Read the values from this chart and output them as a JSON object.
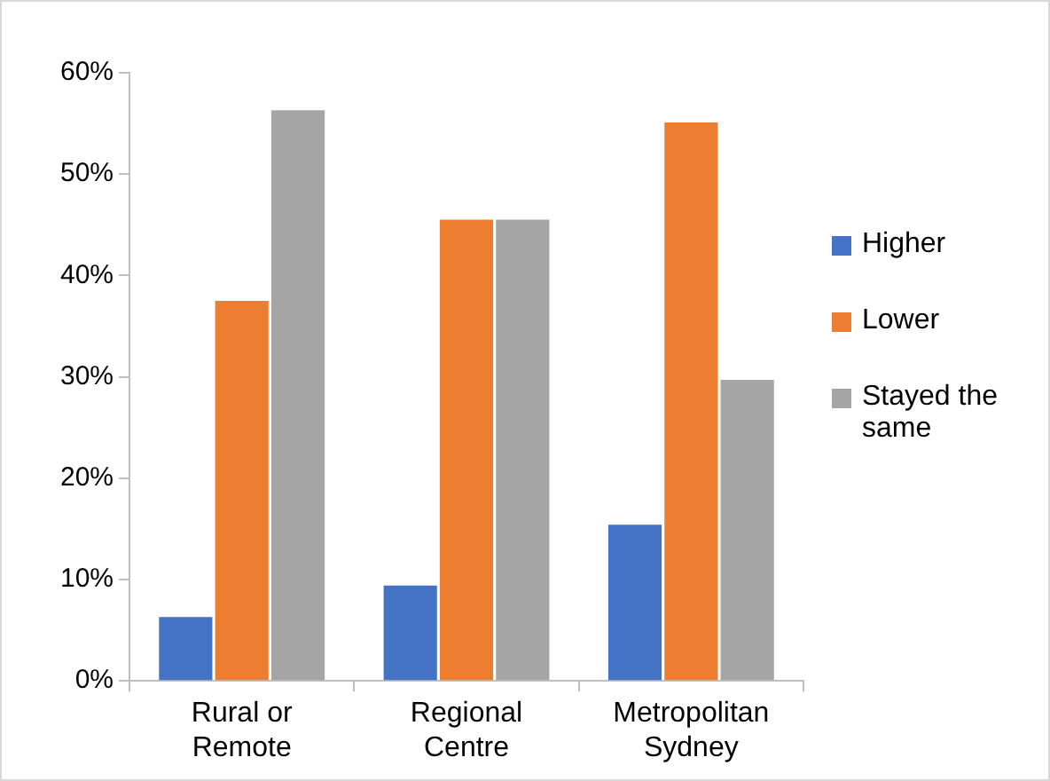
{
  "chart_data": {
    "type": "bar",
    "categories": [
      "Rural or Remote",
      "Regional Centre",
      "Metropolitan Sydney"
    ],
    "series": [
      {
        "name": "Higher",
        "color": "#4472c4",
        "values": [
          6.3,
          9.4,
          15.4
        ]
      },
      {
        "name": "Lower",
        "color": "#ed7d31",
        "values": [
          37.5,
          45.5,
          55.1
        ]
      },
      {
        "name": "Stayed the same",
        "color": "#a5a5a5",
        "values": [
          56.3,
          45.5,
          29.7
        ]
      }
    ],
    "ylim": [
      0,
      60
    ],
    "yticks": [
      {
        "value": 0,
        "label": "0%"
      },
      {
        "value": 10,
        "label": "10%"
      },
      {
        "value": 20,
        "label": "20%"
      },
      {
        "value": 30,
        "label": "30%"
      },
      {
        "value": 40,
        "label": "40%"
      },
      {
        "value": 50,
        "label": "50%"
      },
      {
        "value": 60,
        "label": "60%"
      }
    ],
    "grid": false,
    "legend": "right"
  }
}
